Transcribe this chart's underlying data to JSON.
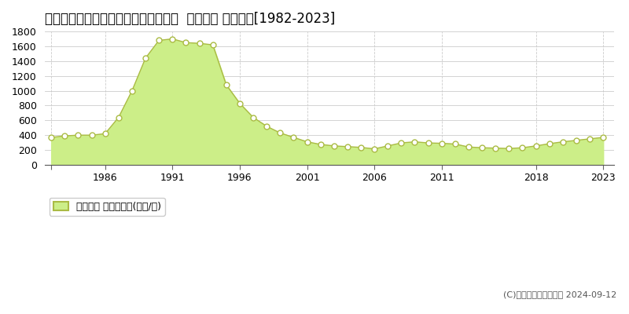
{
  "title": "東京都台東区浅草橋３丁目１０番２外  地価公示 地価推移[1982-2023]",
  "years": [
    1982,
    1983,
    1984,
    1985,
    1986,
    1987,
    1988,
    1989,
    1990,
    1991,
    1992,
    1993,
    1994,
    1995,
    1996,
    1997,
    1998,
    1999,
    2000,
    2001,
    2002,
    2003,
    2004,
    2005,
    2006,
    2007,
    2008,
    2009,
    2010,
    2011,
    2012,
    2013,
    2014,
    2015,
    2016,
    2017,
    2018,
    2019,
    2020,
    2021,
    2022,
    2023
  ],
  "values": [
    370,
    390,
    400,
    400,
    420,
    640,
    1000,
    1440,
    1680,
    1700,
    1650,
    1640,
    1620,
    1080,
    830,
    640,
    520,
    430,
    370,
    310,
    275,
    255,
    245,
    235,
    215,
    255,
    295,
    310,
    295,
    290,
    280,
    240,
    230,
    225,
    220,
    230,
    255,
    285,
    310,
    330,
    350,
    370
  ],
  "fill_color": "#ccee88",
  "line_color": "#aabb44",
  "marker_facecolor": "#ffffff",
  "marker_edgecolor": "#aabb44",
  "background_color": "#ffffff",
  "grid_color_solid": "#cccccc",
  "grid_color_dash": "#cccccc",
  "ylim": [
    0,
    1800
  ],
  "yticks": [
    0,
    200,
    400,
    600,
    800,
    1000,
    1200,
    1400,
    1600,
    1800
  ],
  "xticks": [
    1982,
    1986,
    1991,
    1996,
    2001,
    2006,
    2011,
    2018,
    2023
  ],
  "xtick_labels": [
    "",
    "1986",
    "1991",
    "1996",
    "2001",
    "2006",
    "2011",
    "2018",
    "2023"
  ],
  "xlim": [
    1981.5,
    2023.8
  ],
  "legend_label": "地価公示 平均坪単価(万円/坪)",
  "copyright_text": "(C)土地価格ドットコム 2024-09-12",
  "title_fontsize": 12,
  "tick_fontsize": 9,
  "legend_fontsize": 9
}
